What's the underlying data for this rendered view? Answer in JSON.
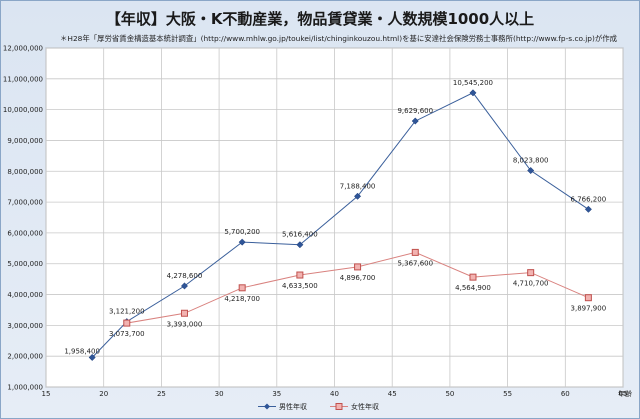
{
  "chart_data": {
    "type": "line",
    "title": "【年収】大阪・K不動産業，物品賃貸業・人数規模1000人以上",
    "subtitle": "＊H28年「厚労省賃金構造基本統計調査」(http://www.mhlw.go.jp/toukei/list/chinginkouzou.html)を基に安達社会保険労務士事務所(http://www.fp-s.co.jp)が作成",
    "xlabel": "年齢",
    "ylabel": "",
    "xlim": [
      15,
      65
    ],
    "ylim": [
      1000000,
      12000000
    ],
    "x_ticks": [
      "15",
      "20",
      "25",
      "30",
      "35",
      "40",
      "45",
      "50",
      "55",
      "60",
      "65"
    ],
    "y_ticks": [
      "1,000,000",
      "2,000,000",
      "3,000,000",
      "4,000,000",
      "5,000,000",
      "6,000,000",
      "7,000,000",
      "8,000,000",
      "9,000,000",
      "10,000,000",
      "11,000,000",
      "12,000,000"
    ],
    "grid": true,
    "legend": "bottom",
    "series": [
      {
        "name": "男性年収",
        "color": "#3a5f9b",
        "marker": "diamond",
        "x": [
          19,
          22,
          27,
          32,
          37,
          42,
          47,
          52,
          57,
          62
        ],
        "values": [
          1958400,
          3121200,
          4278600,
          5700200,
          5616400,
          7188400,
          9629600,
          10545200,
          8023800,
          6766200
        ],
        "labels": [
          "1,958,400",
          "3,121,200",
          "4,278,600",
          "5,700,200",
          "5,616,400",
          "7,188,400",
          "9,629,600",
          "10,545,200",
          "8,023,800",
          "6,766,200"
        ]
      },
      {
        "name": "女性年収",
        "color": "#d9827f",
        "marker": "square",
        "x": [
          22,
          27,
          32,
          37,
          42,
          47,
          52,
          57,
          62
        ],
        "values": [
          3073700,
          3393000,
          4218700,
          4633500,
          4896700,
          5367600,
          4564900,
          4710700,
          3897900
        ],
        "labels": [
          "3,073,700",
          "3,393,000",
          "4,218,700",
          "4,633,500",
          "4,896,700",
          "5,367,600",
          "4,564,900",
          "4,710,700",
          "3,897,900"
        ]
      }
    ]
  }
}
